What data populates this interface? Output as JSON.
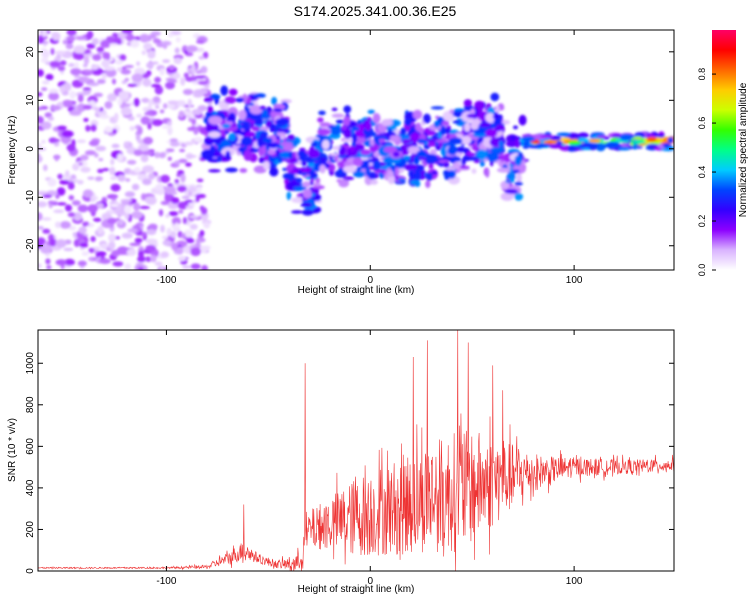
{
  "title": "S174.2025.341.00.36.E25",
  "chart_data": [
    {
      "type": "heatmap",
      "title": "S174.2025.341.00.36.E25",
      "xlabel": "Height of straight line (km)",
      "ylabel": "Frequency (Hz)",
      "xlim": [
        -163,
        149
      ],
      "ylim": [
        -25,
        24.5
      ],
      "xticks": [
        -100,
        0,
        100
      ],
      "xtick_labels": [
        "-100",
        "0",
        "100"
      ],
      "yticks": [
        -20,
        -10,
        0,
        10,
        20
      ],
      "ytick_labels": [
        "-20",
        "-10",
        "0",
        "10",
        "20"
      ],
      "colorbar": {
        "label": "Normalized spectral amplitude",
        "range": [
          0,
          0.98
        ],
        "ticks": [
          0,
          0.2,
          0.4,
          0.6,
          0.8
        ],
        "tick_labels": [
          "0.0",
          "0.2",
          "0.4",
          "0.6",
          "0.8"
        ],
        "colormap": [
          "#ffffff",
          "#d9b3ff",
          "#8c00ff",
          "#3300ff",
          "#0044ff",
          "#00ccff",
          "#00ff88",
          "#33ff00",
          "#ccff00",
          "#ffcc00",
          "#ff6600",
          "#ff0000",
          "#ff0066"
        ]
      },
      "features": [
        {
          "name": "broadband noise",
          "x_range": [
            -163,
            -80
          ],
          "freq_range": [
            -25,
            24.5
          ],
          "amplitude": 0.08
        },
        {
          "name": "main signal band",
          "x_range": [
            -80,
            75
          ],
          "freq_range": [
            -15,
            10
          ],
          "amplitude": 0.25
        },
        {
          "name": "narrowband tail",
          "x_range": [
            76,
            149
          ],
          "center_freq": 1.5,
          "width_hz": 3,
          "amplitude": 0.9
        }
      ]
    },
    {
      "type": "line",
      "xlabel": "Height of straight line (km)",
      "ylabel": "SNR (10 * v/v)",
      "xlim": [
        -163,
        149
      ],
      "ylim": [
        0,
        1160
      ],
      "xticks": [
        -100,
        0,
        100
      ],
      "xtick_labels": [
        "-100",
        "0",
        "100"
      ],
      "yticks": [
        0,
        200,
        400,
        600,
        800,
        1000
      ],
      "ytick_labels": [
        "0",
        "200",
        "400",
        "600",
        "800",
        "1000"
      ],
      "color": "#ee3333",
      "envelope": {
        "x": [
          -163,
          -100,
          -80,
          -70,
          -62,
          -55,
          -45,
          -35,
          -30,
          -20,
          -10,
          0,
          10,
          20,
          30,
          40,
          45,
          55,
          65,
          75,
          85,
          100,
          120,
          149
        ],
        "base": [
          15,
          15,
          20,
          60,
          100,
          60,
          30,
          40,
          200,
          230,
          250,
          280,
          300,
          330,
          360,
          380,
          390,
          420,
          440,
          470,
          480,
          500,
          500,
          510
        ],
        "amp": [
          5,
          6,
          15,
          50,
          80,
          40,
          30,
          80,
          150,
          220,
          300,
          350,
          380,
          420,
          450,
          480,
          500,
          420,
          320,
          200,
          120,
          80,
          60,
          50
        ]
      },
      "spikes": [
        {
          "x": -62,
          "y": 320
        },
        {
          "x": -32,
          "y": 1000
        },
        {
          "x": 21,
          "y": 1030
        },
        {
          "x": 28,
          "y": 1110
        },
        {
          "x": 43,
          "y": 1160
        },
        {
          "x": 48,
          "y": 1100
        },
        {
          "x": 60,
          "y": 990
        },
        {
          "x": 65,
          "y": 870
        }
      ]
    }
  ]
}
